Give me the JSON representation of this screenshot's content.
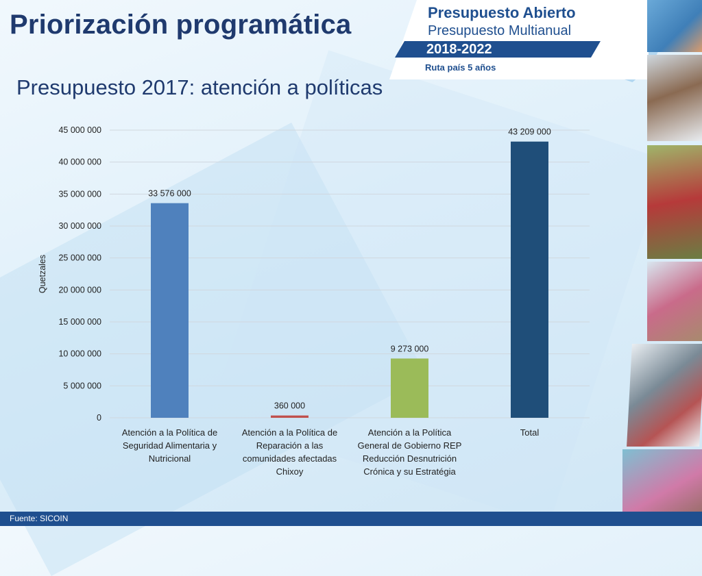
{
  "header": {
    "title": "Priorización programática",
    "subtitle": "Presupuesto 2017: atención a políticas"
  },
  "logo": {
    "line1": "Presupuesto Abierto",
    "line2": "Presupuesto Multianual",
    "years": "2018-2022",
    "line3": "Ruta país 5 años"
  },
  "footer": {
    "source": "Fuente: SICOIN"
  },
  "colors": {
    "title": "#1f3a6e",
    "band": "#1f4f8f",
    "series": [
      "#4f81bd",
      "#c0504d",
      "#9bbb59",
      "#1f4e79"
    ]
  },
  "chart_data": {
    "type": "bar",
    "title": "",
    "xlabel": "",
    "ylabel": "Quetzales",
    "ylim": [
      0,
      45000000
    ],
    "ytick_step": 5000000,
    "grid": true,
    "categories": [
      [
        "Atención a la Política de",
        "Seguridad Alimentaria y",
        "Nutricional"
      ],
      [
        "Atención a la Política de",
        "Reparación a las",
        "comunidades afectadas",
        "Chixoy"
      ],
      [
        "Atención a la Política",
        "General de Gobierno REP",
        "Reducción Desnutrición",
        "Crónica y su Estratégia"
      ],
      [
        "Total"
      ]
    ],
    "values": [
      33576000,
      360000,
      9273000,
      43209000
    ],
    "data_labels": [
      "33 576 000",
      "360 000",
      "9 273 000",
      "43 209 000"
    ]
  }
}
